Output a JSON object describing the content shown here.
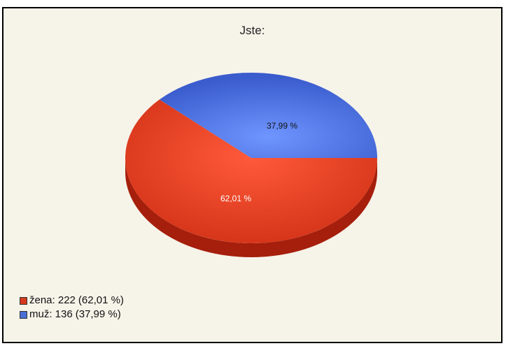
{
  "chart_data": {
    "type": "pie",
    "title": "Jste:",
    "slices": [
      {
        "label": "žena",
        "value": 222,
        "percent": 62.01,
        "percent_label": "62,01 %",
        "legend_text": "žena: 222",
        "legend_pct": "(62,01 %)",
        "color": "#d63a1e"
      },
      {
        "label": "muž",
        "value": 136,
        "percent": 37.99,
        "percent_label": "37,99 %",
        "legend_text": "muž: 136",
        "legend_pct": "(37,99 %)",
        "color": "#4a6fd6"
      }
    ],
    "legend_placement": "bottom-left",
    "style": "3d"
  }
}
